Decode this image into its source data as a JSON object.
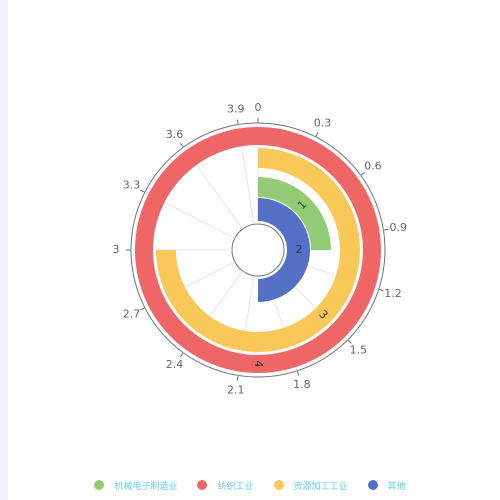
{
  "chart_data": {
    "type": "polar-bar",
    "angle_axis": {
      "min": 0,
      "max": 4,
      "ticks": [
        "0",
        "0.3",
        "0.6",
        "0.9",
        "1.2",
        "1.5",
        "1.8",
        "2.1",
        "2.4",
        "2.7",
        "3",
        "3.3",
        "3.6",
        "3.9"
      ]
    },
    "series": [
      {
        "name": "机械电子制造业",
        "value": 1,
        "label": "1",
        "color": "#91cc75"
      },
      {
        "name": "纺织工业",
        "value": 4,
        "label": "4",
        "color": "#ee6666"
      },
      {
        "name": "资源加工工业",
        "value": 3,
        "label": "3",
        "color": "#fac858"
      },
      {
        "name": "其他",
        "value": 2,
        "label": "2",
        "color": "#5470c6"
      }
    ],
    "legend": [
      "机械电子制造业",
      "纺织工业",
      "资源加工工业",
      "其他"
    ],
    "legend_position": "bottom",
    "grid": true
  }
}
